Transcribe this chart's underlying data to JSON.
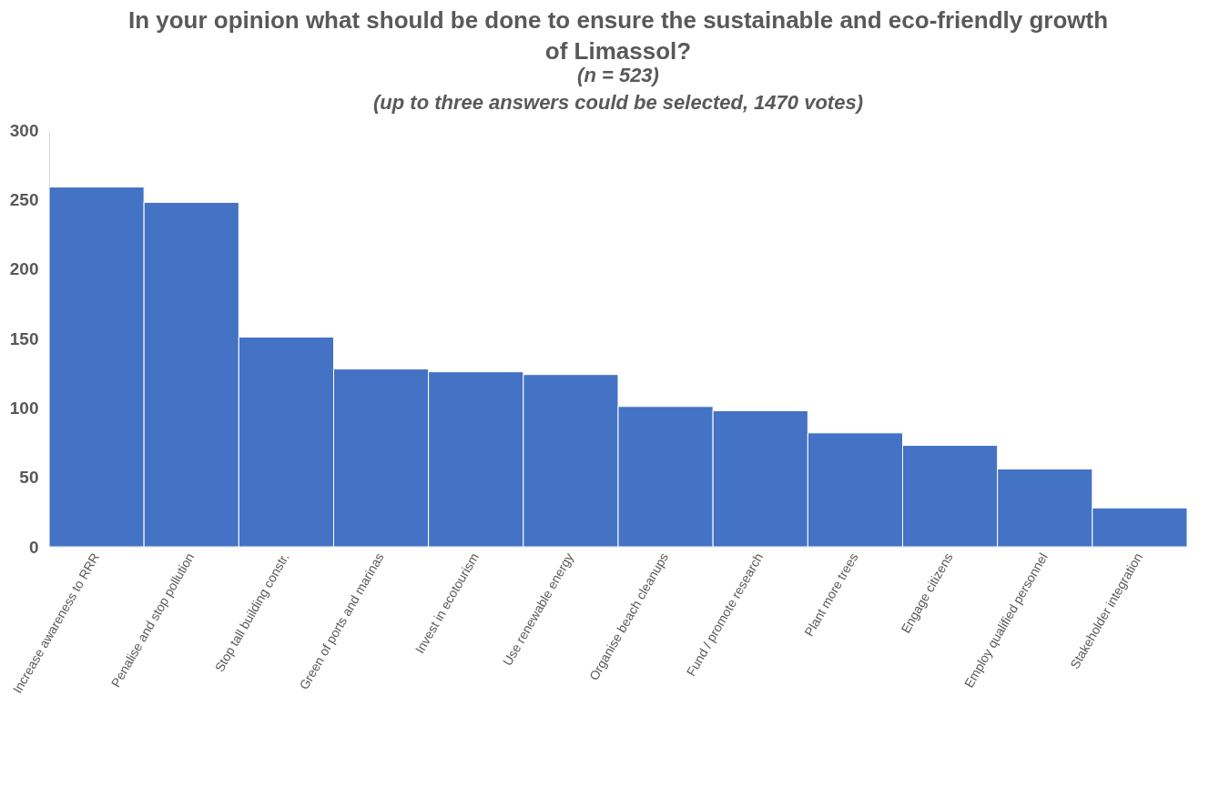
{
  "chart_data": {
    "type": "bar",
    "title": "In your opinion what should be done to ensure the sustainable and eco-friendly growth of Limassol?",
    "subtitle": "(n = 523)",
    "annotations": [
      "(up to three answers could be selected, 1470 votes)"
    ],
    "categories": [
      "Increase awareness to RRR",
      "Penalise and stop pollution",
      "Stop tall building constr.",
      "Green of ports and marinas",
      "Invest in ecotourism",
      "Use renewable energy",
      "Organise  beach cleanups",
      "Fund / promote research",
      "Plant more trees",
      "Engage citizens",
      "Employ qualified personnel",
      "Stakeholder integration"
    ],
    "values": [
      259,
      248,
      151,
      128,
      126,
      124,
      101,
      98,
      82,
      73,
      56,
      28
    ],
    "color": "#4472c4",
    "ylim": [
      0,
      300
    ],
    "yticks": [
      0,
      50,
      100,
      150,
      200,
      250,
      300
    ],
    "grid": false
  }
}
